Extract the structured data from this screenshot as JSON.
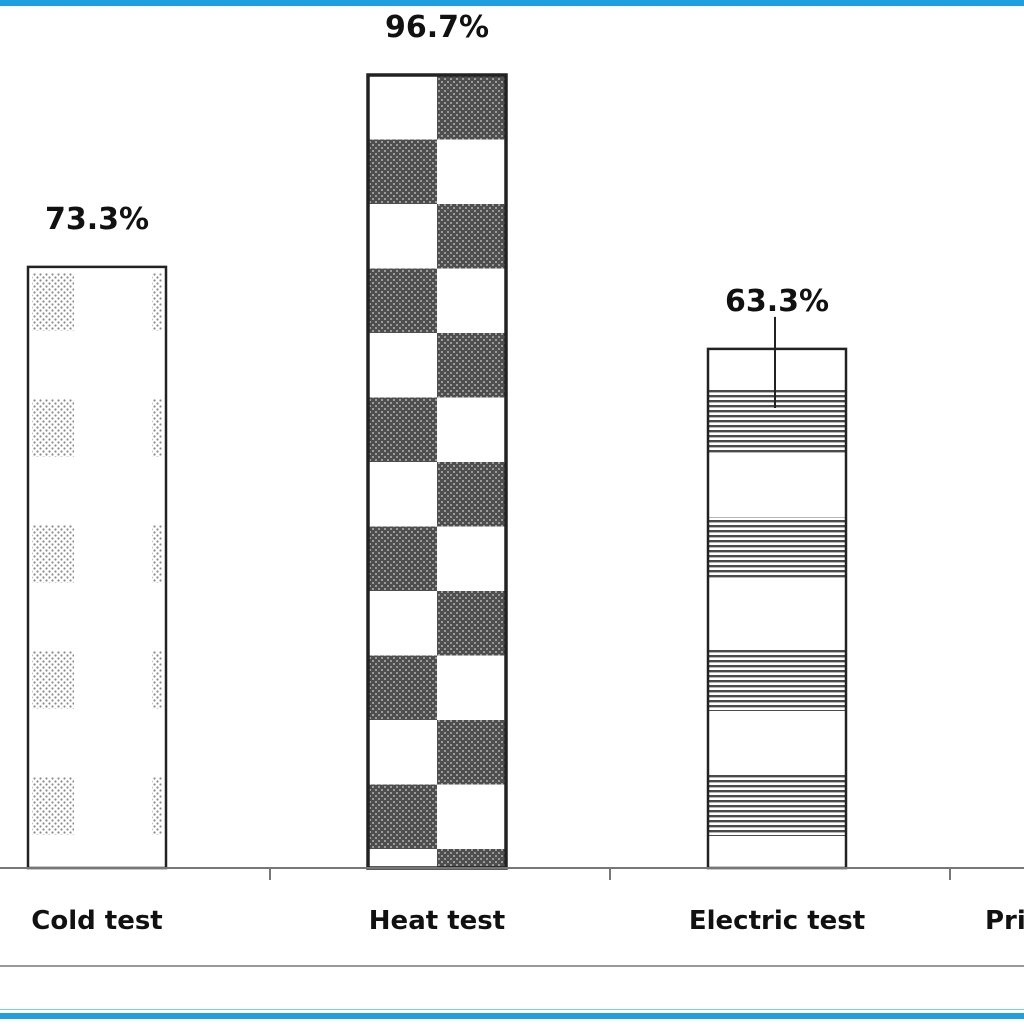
{
  "chart_data": {
    "type": "bar",
    "title": "",
    "xlabel": "",
    "ylabel": "",
    "categories": [
      "Cold test",
      "Heat test",
      "Electric test",
      "Pri"
    ],
    "values": [
      73.3,
      96.7,
      63.3,
      null
    ],
    "data_labels": [
      "73.3%",
      "96.7%",
      "63.3%",
      ""
    ],
    "ylim": [
      0,
      100
    ],
    "grid": false,
    "patterns": [
      "dotted-blocks",
      "checkerboard",
      "horizontal-stripes",
      "none"
    ],
    "colors": {
      "bar_fill": "#ffffff",
      "pattern_dark": "#5a5a5a",
      "pattern_dot": "#8a8a8a",
      "axis": "#666666",
      "frame_accent": "#1ea0e0"
    }
  }
}
